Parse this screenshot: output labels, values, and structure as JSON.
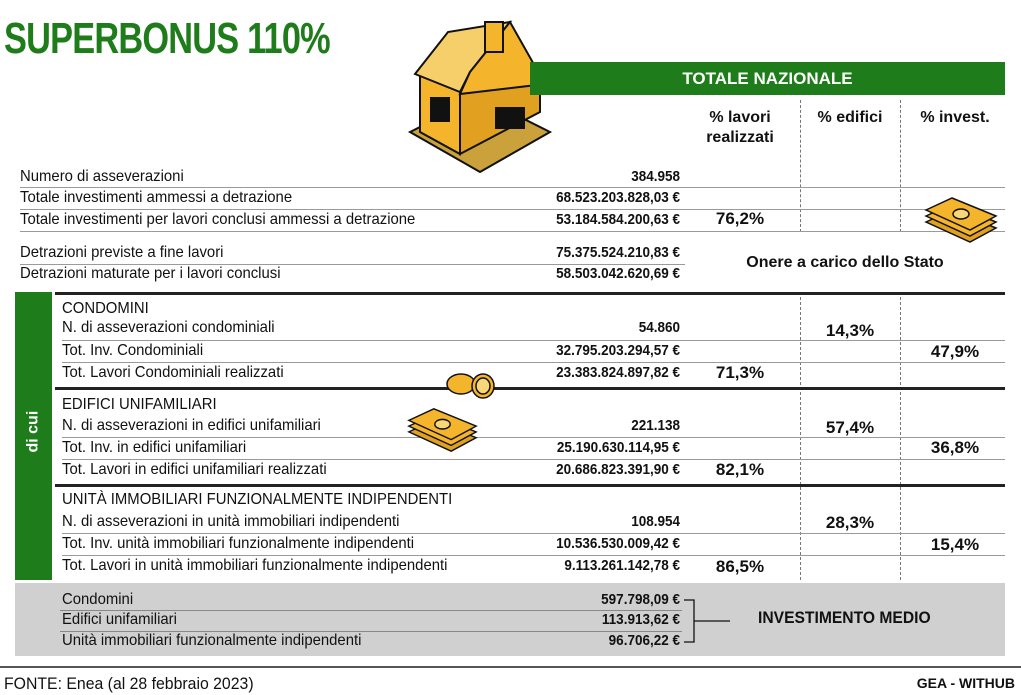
{
  "title": "SUPERBONUS 110%",
  "band_title": "TOTALE NAZIONALE",
  "columns": {
    "lavori": "% lavori realizzati",
    "edifici": "% edifici",
    "invest": "% invest."
  },
  "totals": [
    {
      "label": "Numero di asseverazioni",
      "value": "384.958"
    },
    {
      "label": "Totale investimenti ammessi a detrazione",
      "value": "68.523.203.828,03 €"
    },
    {
      "label": "Totale investimenti per lavori conclusi ammessi a detrazione",
      "value": "53.184.584.200,63 €",
      "pct_lavori": "76,2%"
    }
  ],
  "detrazioni": [
    {
      "label": "Detrazioni previste a fine lavori",
      "value": "75.375.524.210,83 €"
    },
    {
      "label": "Detrazioni maturate per i lavori conclusi",
      "value": "58.503.042.620,69 €"
    }
  ],
  "onere_label": "Onere a carico dello Stato",
  "di_cui_label": "di cui",
  "sections": [
    {
      "heading": "CONDOMINI",
      "rows": [
        {
          "label": "N. di asseverazioni condominiali",
          "value": "54.860",
          "pct": "14,3%"
        },
        {
          "label": "Tot. Inv. Condominiali",
          "value": "32.795.203.294,57 €",
          "pct": "47,9%"
        },
        {
          "label": "Tot. Lavori Condominiali realizzati",
          "value": "23.383.824.897,82 €",
          "pct": "71,3%"
        }
      ]
    },
    {
      "heading": "EDIFICI UNIFAMILIARI",
      "rows": [
        {
          "label": "N. di asseverazioni in edifici unifamiliari",
          "value": "221.138",
          "pct": "57,4%"
        },
        {
          "label": "Tot. Inv. in edifici unifamiliari",
          "value": "25.190.630.114,95 €",
          "pct": "36,8%"
        },
        {
          "label": "Tot. Lavori in edifici unifamiliari realizzati",
          "value": "20.686.823.391,90 €",
          "pct": "82,1%"
        }
      ]
    },
    {
      "heading": "UNITÀ IMMOBILIARI FUNZIONALMENTE INDIPENDENTI",
      "rows": [
        {
          "label": "N. di asseverazioni in unità immobiliari indipendenti",
          "value": "108.954",
          "pct": "28,3%"
        },
        {
          "label": "Tot. Inv. unità immobiliari funzionalmente indipendenti",
          "value": "10.536.530.009,42 €",
          "pct": "15,4%"
        },
        {
          "label": "Tot. Lavori in unità immobiliari funzionalmente indipendenti",
          "value": "9.113.261.142,78 €",
          "pct": "86,5%"
        }
      ]
    }
  ],
  "medio": {
    "label": "INVESTIMENTO MEDIO",
    "rows": [
      {
        "label": "Condomini",
        "value": "597.798,09 €"
      },
      {
        "label": "Edifici unifamiliari",
        "value": "113.913,62 €"
      },
      {
        "label": "Unità immobiliari funzionalmente indipendenti",
        "value": "96.706,22 €"
      }
    ]
  },
  "source": "FONTE: Enea (al 28 febbraio 2023)",
  "credit": "GEA - WITHUB",
  "colors": {
    "green": "#1e7d1a",
    "gold": "#f4b52c",
    "gray_box": "#d0d0d0"
  }
}
